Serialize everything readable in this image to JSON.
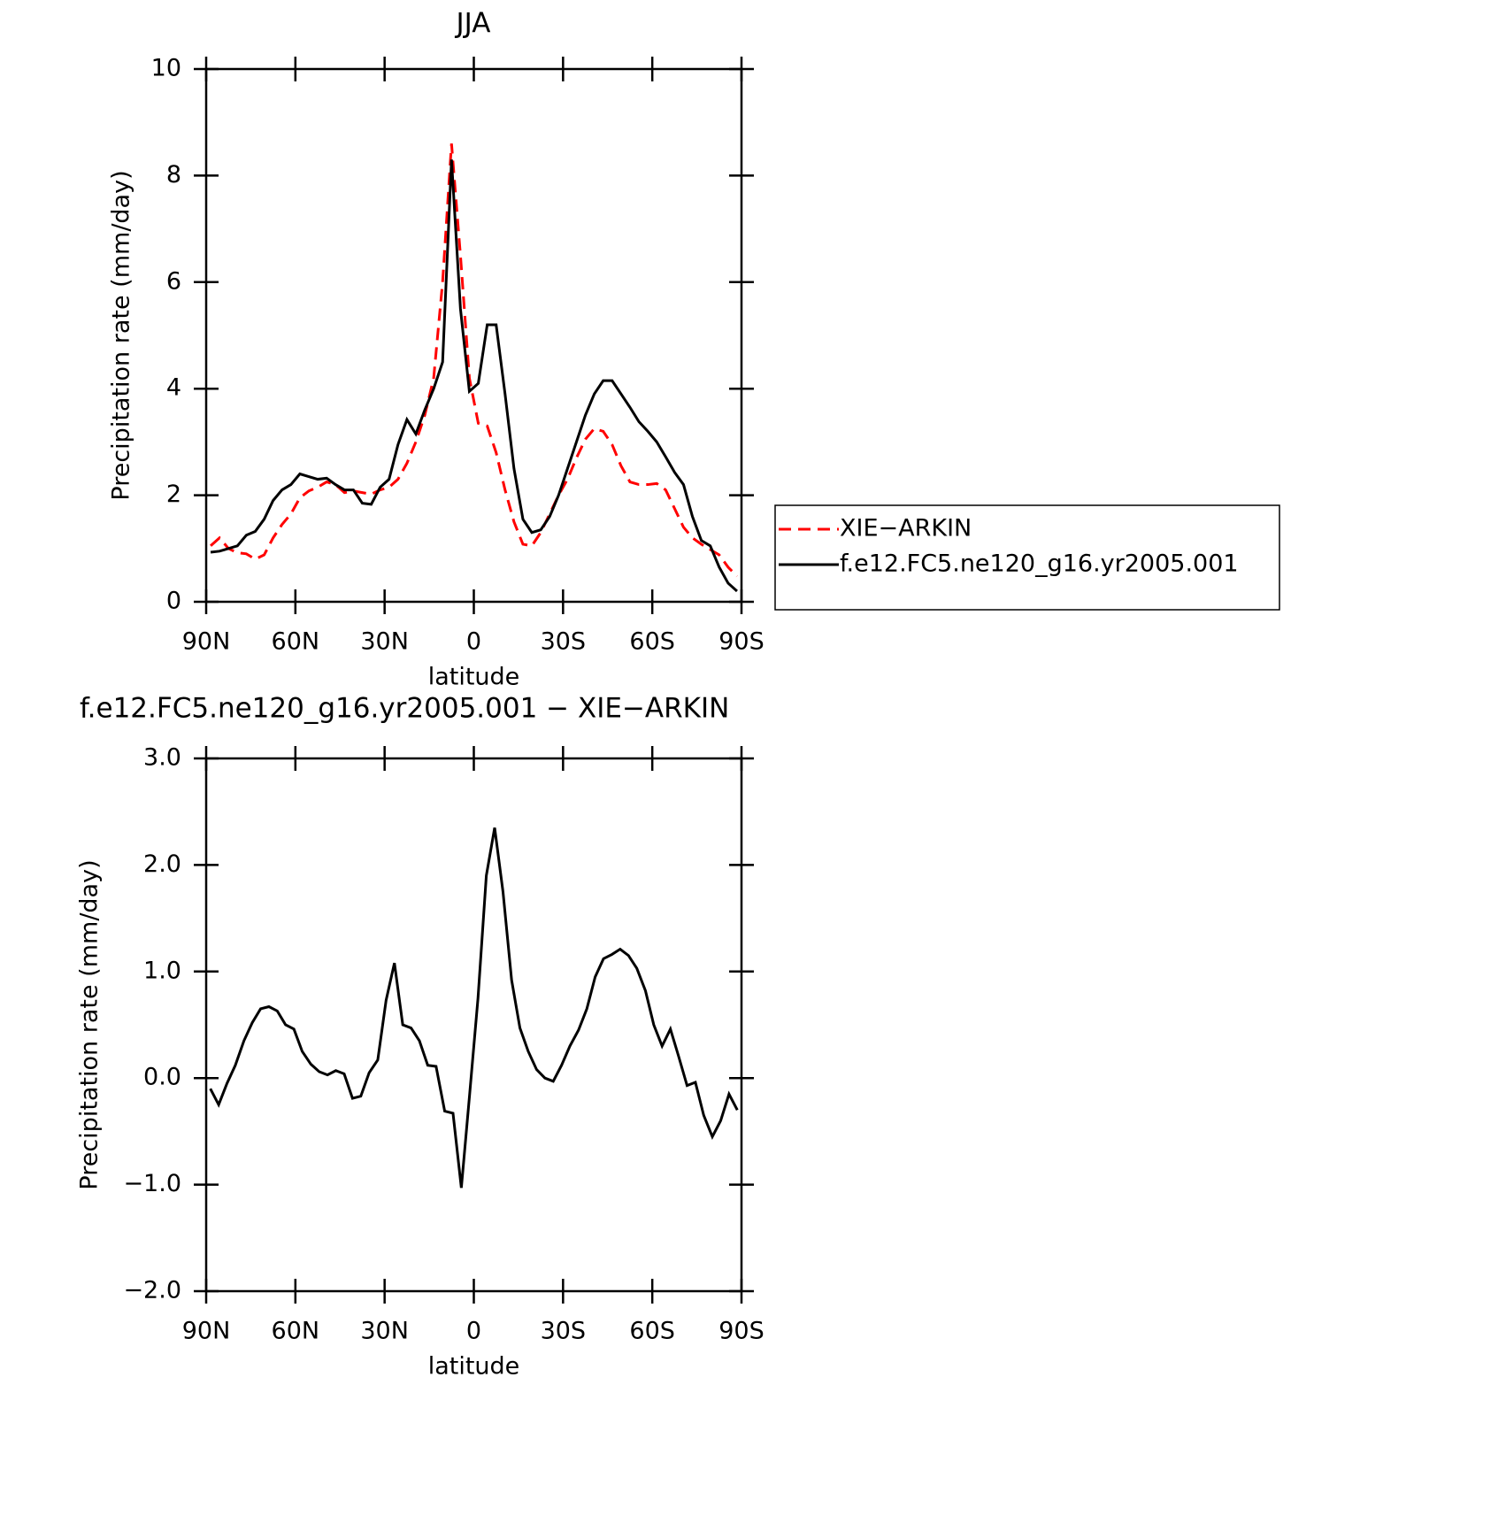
{
  "chart_data": [
    {
      "type": "line",
      "title": "JJA",
      "xlabel": "latitude",
      "ylabel": "Precipitation rate (mm/day)",
      "xlim": [
        90,
        -90
      ],
      "xticks": [
        {
          "value": 90,
          "label": "90N"
        },
        {
          "value": 60,
          "label": "60N"
        },
        {
          "value": 30,
          "label": "30N"
        },
        0,
        {
          "value": -30,
          "label": "30S"
        },
        {
          "value": -60,
          "label": "60S"
        },
        {
          "value": -90,
          "label": "90S"
        }
      ],
      "ylim": [
        0,
        10
      ],
      "yticks": [
        0,
        2,
        4,
        6,
        8,
        10
      ],
      "legend": "right",
      "x": [
        88.5,
        85.5,
        82.5,
        79.5,
        76.5,
        73.5,
        70.5,
        67.5,
        64.5,
        61.5,
        58.5,
        55.5,
        52.5,
        49.5,
        46.5,
        43.5,
        40.5,
        37.5,
        34.5,
        31.5,
        28.5,
        25.5,
        22.5,
        19.5,
        16.5,
        13.5,
        10.5,
        7.5,
        4.5,
        1.5,
        -1.5,
        -4.5,
        -7.5,
        -10.5,
        -13.5,
        -16.5,
        -19.5,
        -22.5,
        -25.5,
        -28.5,
        -31.5,
        -34.5,
        -37.5,
        -40.5,
        -43.5,
        -46.5,
        -49.5,
        -52.5,
        -55.5,
        -58.5,
        -61.5,
        -64.5,
        -67.5,
        -70.5,
        -73.5,
        -76.5,
        -79.5,
        -82.5,
        -85.5,
        -88.5
      ],
      "series": [
        {
          "name": "XIE−ARKIN",
          "color": "#ff0000",
          "dashed": true,
          "values": [
            1.05,
            1.2,
            1.0,
            0.92,
            0.9,
            0.8,
            0.88,
            1.2,
            1.45,
            1.65,
            1.95,
            2.08,
            2.15,
            2.25,
            2.2,
            2.05,
            2.08,
            2.05,
            2.02,
            2.1,
            2.15,
            2.3,
            2.6,
            3.0,
            3.5,
            4.2,
            6.0,
            8.6,
            6.5,
            4.2,
            3.35,
            3.3,
            2.8,
            2.1,
            1.5,
            1.08,
            1.05,
            1.3,
            1.65,
            2.0,
            2.3,
            2.7,
            3.05,
            3.25,
            3.2,
            2.95,
            2.55,
            2.25,
            2.2,
            2.2,
            2.22,
            2.1,
            1.75,
            1.4,
            1.2,
            1.08,
            0.98,
            0.88,
            0.65,
            0.48
          ]
        },
        {
          "name": "f.e12.FC5.ne120_g16.yr2005.001",
          "color": "#000000",
          "dashed": false,
          "values": [
            0.93,
            0.95,
            1.0,
            1.05,
            1.25,
            1.32,
            1.55,
            1.9,
            2.1,
            2.2,
            2.4,
            2.35,
            2.3,
            2.32,
            2.2,
            2.1,
            2.1,
            1.85,
            1.83,
            2.15,
            2.3,
            2.95,
            3.42,
            3.15,
            3.6,
            4.0,
            4.5,
            8.3,
            5.5,
            3.95,
            4.1,
            5.2,
            5.2,
            3.9,
            2.5,
            1.55,
            1.3,
            1.35,
            1.6,
            2.0,
            2.5,
            3.0,
            3.5,
            3.9,
            4.15,
            4.15,
            3.9,
            3.65,
            3.38,
            3.2,
            3.0,
            2.72,
            2.43,
            2.2,
            1.6,
            1.15,
            1.05,
            0.65,
            0.35,
            0.2
          ]
        }
      ]
    },
    {
      "type": "line",
      "title": "f.e12.FC5.ne120_g16.yr2005.001 − XIE−ARKIN",
      "xlabel": "latitude",
      "ylabel": "Precipitation rate (mm/day)",
      "xlim": [
        90,
        -90
      ],
      "xticks": [
        {
          "value": 90,
          "label": "90N"
        },
        {
          "value": 60,
          "label": "60N"
        },
        {
          "value": 30,
          "label": "30N"
        },
        0,
        {
          "value": -30,
          "label": "30S"
        },
        {
          "value": -60,
          "label": "60S"
        },
        {
          "value": -90,
          "label": "90S"
        }
      ],
      "ylim": [
        -2,
        3
      ],
      "yticks": [
        {
          "value": -2,
          "label": "−2.0"
        },
        {
          "value": -1,
          "label": "−1.0"
        },
        {
          "value": 0,
          "label": "0.0"
        },
        {
          "value": 1,
          "label": "1.0"
        },
        {
          "value": 2,
          "label": "2.0"
        },
        {
          "value": 3,
          "label": "3.0"
        }
      ],
      "x": [
        88.6,
        85.8,
        83.0,
        80.2,
        77.3,
        74.5,
        71.7,
        68.9,
        66.1,
        63.3,
        60.5,
        57.7,
        54.8,
        52.0,
        49.2,
        46.4,
        43.6,
        40.8,
        38.0,
        35.2,
        32.3,
        29.5,
        26.7,
        23.9,
        21.1,
        18.3,
        15.5,
        12.7,
        9.8,
        7.0,
        4.2,
        1.4,
        -1.4,
        -4.2,
        -7.0,
        -9.8,
        -12.7,
        -15.5,
        -18.3,
        -21.1,
        -23.9,
        -26.7,
        -29.5,
        -32.3,
        -35.2,
        -38.0,
        -40.8,
        -43.6,
        -46.4,
        -49.2,
        -52.0,
        -54.8,
        -57.7,
        -60.5,
        -63.3,
        -66.1,
        -68.9,
        -71.7,
        -74.5,
        -77.3,
        -80.2,
        -83.0,
        -85.8,
        -88.6
      ],
      "series": [
        {
          "color": "#000000",
          "values": [
            -0.1,
            -0.25,
            -0.05,
            0.12,
            0.35,
            0.52,
            0.65,
            0.67,
            0.63,
            0.5,
            0.46,
            0.25,
            0.13,
            0.06,
            0.03,
            0.07,
            0.04,
            -0.19,
            -0.17,
            0.05,
            0.17,
            0.73,
            1.08,
            0.5,
            0.47,
            0.35,
            0.12,
            0.11,
            -0.31,
            -0.33,
            -1.03,
            -0.15,
            0.75,
            1.9,
            2.35,
            1.75,
            0.92,
            0.47,
            0.25,
            0.08,
            0.0,
            -0.03,
            0.12,
            0.3,
            0.45,
            0.65,
            0.95,
            1.12,
            1.16,
            1.21,
            1.15,
            1.03,
            0.82,
            0.5,
            0.3,
            0.46,
            0.2,
            -0.07,
            -0.04,
            -0.35,
            -0.55,
            -0.4,
            -0.15,
            -0.3
          ]
        }
      ]
    }
  ]
}
